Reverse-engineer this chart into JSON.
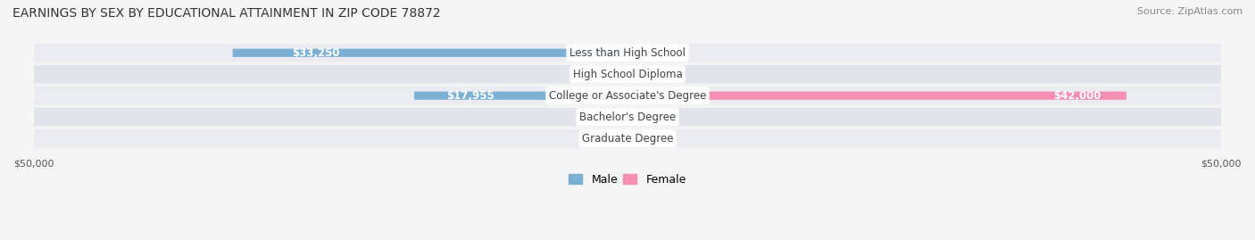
{
  "title": "EARNINGS BY SEX BY EDUCATIONAL ATTAINMENT IN ZIP CODE 78872",
  "source": "Source: ZipAtlas.com",
  "categories": [
    "Less than High School",
    "High School Diploma",
    "College or Associate's Degree",
    "Bachelor's Degree",
    "Graduate Degree"
  ],
  "male_values": [
    33250,
    0,
    17955,
    0,
    0
  ],
  "female_values": [
    0,
    0,
    42000,
    0,
    0
  ],
  "x_min": -50000,
  "x_max": 50000,
  "male_color": "#7bafd4",
  "female_color": "#f48fb1",
  "male_label_color": "#5a8ab0",
  "female_label_color": "#e07090",
  "bar_bg_color": "#e8eaf0",
  "row_bg_even": "#f0f2f7",
  "row_bg_odd": "#e8eaf0",
  "title_fontsize": 10,
  "source_fontsize": 8,
  "label_fontsize": 8.5,
  "tick_fontsize": 8,
  "legend_fontsize": 9,
  "background_color": "#f5f5f5"
}
